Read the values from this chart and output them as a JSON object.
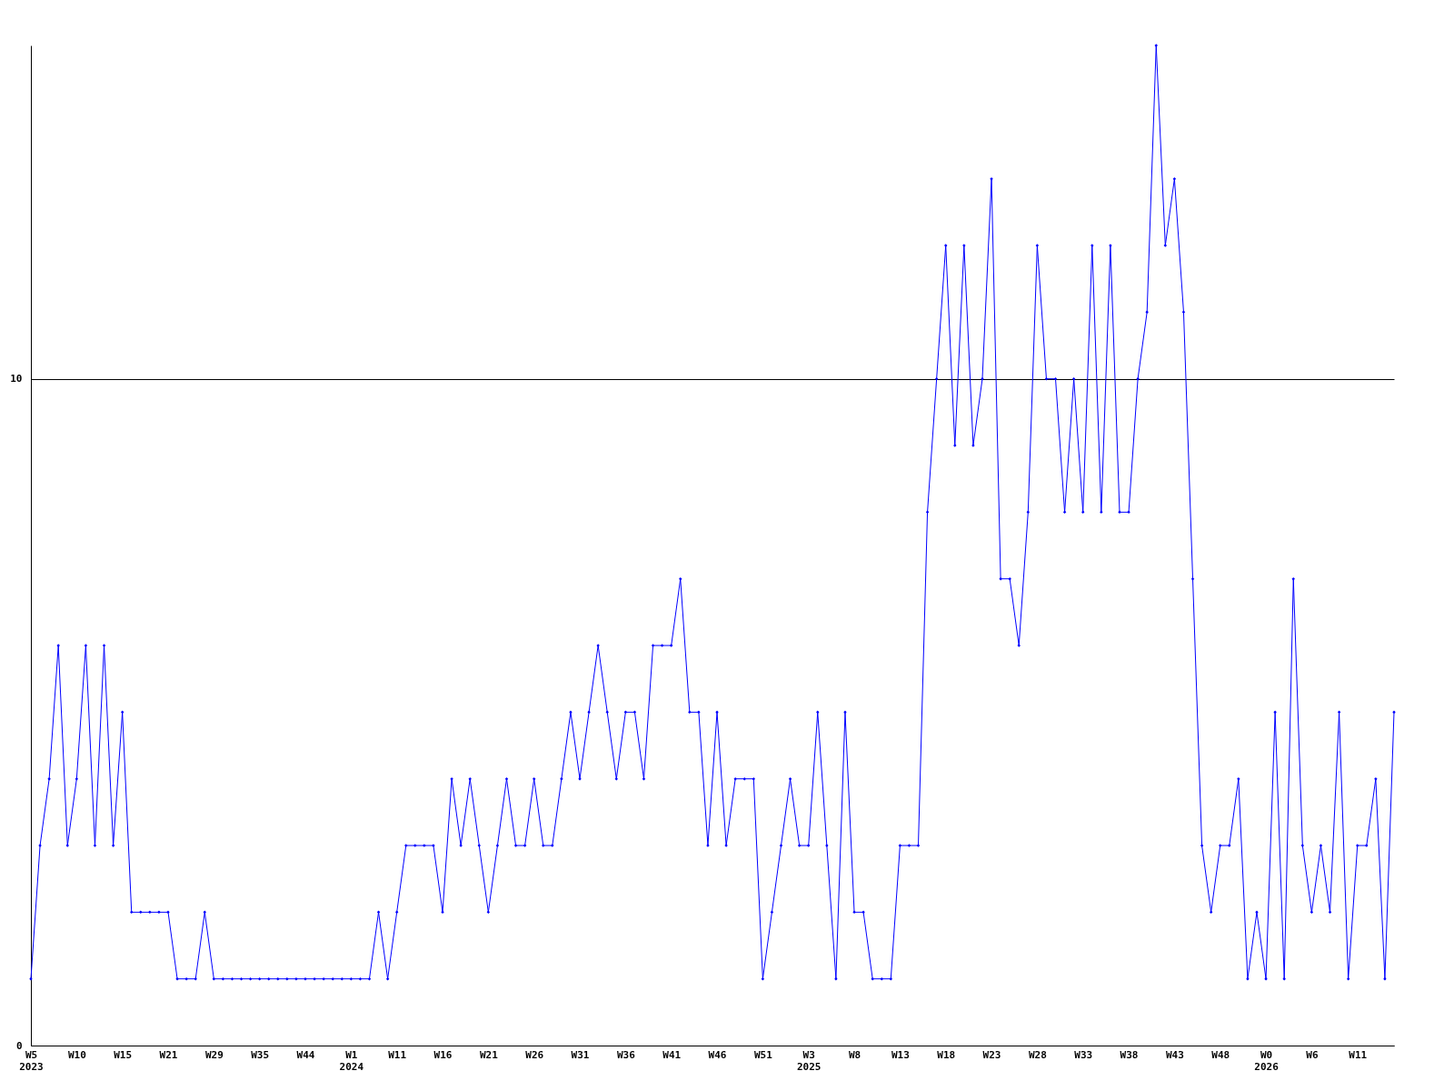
{
  "chart_data": {
    "type": "line",
    "categories": [
      "W5\n2023",
      null,
      null,
      null,
      null,
      "W10",
      null,
      null,
      null,
      null,
      "W15",
      null,
      null,
      null,
      null,
      "W21",
      null,
      null,
      null,
      null,
      "W29",
      null,
      null,
      null,
      null,
      "W35",
      null,
      null,
      null,
      null,
      "W44",
      null,
      null,
      null,
      null,
      "W1\n2024",
      null,
      null,
      null,
      null,
      "W11",
      null,
      null,
      null,
      null,
      "W16",
      null,
      null,
      null,
      null,
      "W21",
      null,
      null,
      null,
      null,
      "W26",
      null,
      null,
      null,
      null,
      "W31",
      null,
      null,
      null,
      null,
      "W36",
      null,
      null,
      null,
      null,
      "W41",
      null,
      null,
      null,
      null,
      "W46",
      null,
      null,
      null,
      null,
      "W51",
      null,
      null,
      null,
      null,
      "W3\n2025",
      null,
      null,
      null,
      null,
      "W8",
      null,
      null,
      null,
      null,
      "W13",
      null,
      null,
      null,
      null,
      "W18",
      null,
      null,
      null,
      null,
      "W23",
      null,
      null,
      null,
      null,
      "W28",
      null,
      null,
      null,
      null,
      "W33",
      null,
      null,
      null,
      null,
      "W38",
      null,
      null,
      null,
      null,
      "W43",
      null,
      null,
      null,
      null,
      "W48",
      null,
      null,
      null,
      null,
      "W0\n2026",
      null,
      null,
      null,
      null,
      "W6",
      null,
      null,
      null,
      null,
      "W11",
      null,
      null,
      null,
      null
    ],
    "series": [
      {
        "color": "#0000ff",
        "values": [
          1,
          3,
          4,
          6,
          3,
          4,
          6,
          3,
          6,
          3,
          5,
          2,
          2,
          2,
          2,
          2,
          1,
          1,
          1,
          2,
          1,
          1,
          1,
          1,
          1,
          1,
          1,
          1,
          1,
          1,
          1,
          1,
          1,
          1,
          1,
          1,
          1,
          1,
          2,
          1,
          2,
          3,
          3,
          3,
          3,
          2,
          4,
          3,
          4,
          3,
          2,
          3,
          4,
          3,
          3,
          4,
          3,
          3,
          4,
          5,
          4,
          5,
          6,
          5,
          4,
          5,
          5,
          4,
          6,
          6,
          6,
          7,
          5,
          5,
          3,
          5,
          3,
          4,
          4,
          4,
          1,
          2,
          3,
          4,
          3,
          3,
          5,
          3,
          1,
          5,
          2,
          2,
          1,
          1,
          1,
          3,
          3,
          3,
          8,
          10,
          12,
          9,
          12,
          9,
          10,
          13,
          7,
          7,
          6,
          8,
          12,
          10,
          10,
          8,
          10,
          8,
          12,
          8,
          12,
          8,
          8,
          10,
          11,
          15,
          12,
          13,
          11,
          7,
          3,
          2,
          3,
          3,
          4,
          1,
          2,
          1,
          5,
          1,
          7,
          3,
          2,
          3,
          2,
          5,
          1,
          3,
          3,
          4,
          1,
          5
        ]
      }
    ],
    "ylim": [
      0,
      15
    ],
    "yticks": [
      0,
      10
    ],
    "grid": "y",
    "marker": "diamond",
    "line_style": "solid"
  }
}
